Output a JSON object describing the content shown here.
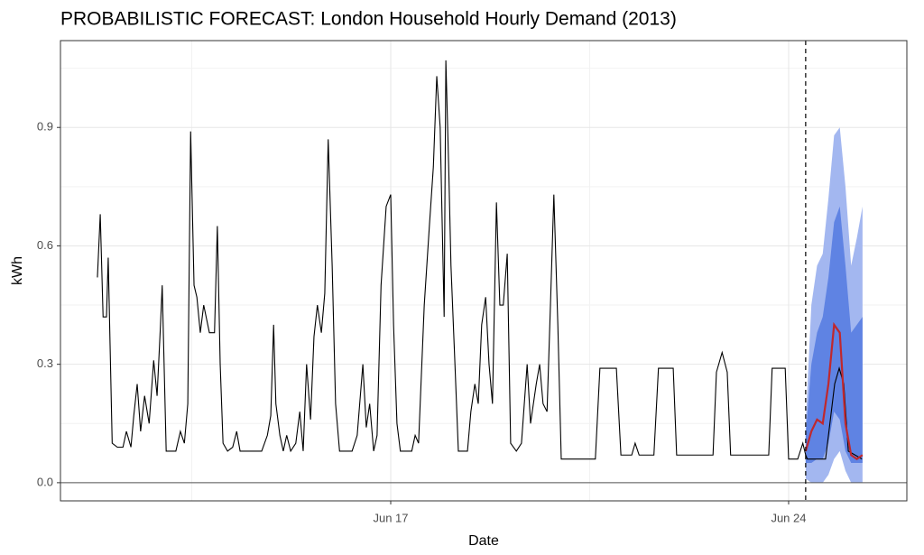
{
  "chart_data": {
    "type": "line",
    "title": "PROBABILISTIC FORECAST: London Household Hourly Demand (2013)",
    "xlabel": "Date",
    "ylabel": "kWh",
    "xlim": [
      11.19,
      26.08
    ],
    "ylim": [
      -0.046,
      1.12
    ],
    "xticks": [
      {
        "value": 17,
        "label": "Jun 17"
      },
      {
        "value": 24,
        "label": "Jun 24"
      }
    ],
    "yticks": [
      {
        "value": 0,
        "label": "0.0"
      },
      0.3,
      0.6,
      0.9
    ],
    "xminor": [
      13.5,
      20.5
    ],
    "yminor": [
      0.15,
      0.45,
      0.75,
      1.05
    ],
    "grid": true,
    "hline": 0,
    "forecast_start": 24.3,
    "series": [
      {
        "color": "#000000",
        "x": [
          11.84,
          11.89,
          11.94,
          12.0,
          12.03,
          12.1,
          12.19,
          12.29,
          12.35,
          12.43,
          12.48,
          12.54,
          12.6,
          12.67,
          12.75,
          12.83,
          12.89,
          12.95,
          12.98,
          13.05,
          13.22,
          13.3,
          13.37,
          13.43,
          13.48,
          13.54,
          13.59,
          13.65,
          13.71,
          13.81,
          13.9,
          13.95,
          14.0,
          14.05,
          14.13,
          14.22,
          14.29,
          14.35,
          14.44,
          14.73,
          14.83,
          14.89,
          14.94,
          14.98,
          15.05,
          15.11,
          15.17,
          15.24,
          15.33,
          15.4,
          15.46,
          15.52,
          15.59,
          15.65,
          15.71,
          15.78,
          15.84,
          15.9,
          15.97,
          16.03,
          16.1,
          16.32,
          16.41,
          16.51,
          16.57,
          16.63,
          16.7,
          16.76,
          16.83,
          16.92,
          17.0,
          17.05,
          17.11,
          17.17,
          17.37,
          17.43,
          17.49,
          17.59,
          17.68,
          17.75,
          17.81,
          17.87,
          17.94,
          17.97,
          18.02,
          18.06,
          18.13,
          18.19,
          18.35,
          18.41,
          18.48,
          18.54,
          18.6,
          18.67,
          18.73,
          18.79,
          18.86,
          18.92,
          18.98,
          19.05,
          19.11,
          19.21,
          19.3,
          19.4,
          19.46,
          19.56,
          19.62,
          19.68,
          19.75,
          19.81,
          19.87,
          19.94,
          20.0,
          20.29,
          20.6,
          20.68,
          20.97,
          21.05,
          21.24,
          21.3,
          21.37,
          21.63,
          21.71,
          21.97,
          22.03,
          22.67,
          22.73,
          22.83,
          22.92,
          22.98,
          23.65,
          23.71,
          23.94,
          24.0,
          24.16,
          24.25,
          24.3,
          24.33,
          24.65,
          24.81,
          24.89,
          24.97,
          25.05,
          25.29
        ],
        "values": [
          0.52,
          0.68,
          0.42,
          0.42,
          0.57,
          0.1,
          0.09,
          0.09,
          0.13,
          0.09,
          0.17,
          0.25,
          0.13,
          0.22,
          0.15,
          0.31,
          0.22,
          0.4,
          0.5,
          0.08,
          0.08,
          0.13,
          0.1,
          0.2,
          0.89,
          0.5,
          0.47,
          0.38,
          0.45,
          0.38,
          0.38,
          0.65,
          0.3,
          0.1,
          0.08,
          0.09,
          0.13,
          0.08,
          0.08,
          0.08,
          0.12,
          0.17,
          0.4,
          0.2,
          0.12,
          0.08,
          0.12,
          0.08,
          0.1,
          0.18,
          0.08,
          0.3,
          0.16,
          0.37,
          0.45,
          0.38,
          0.48,
          0.87,
          0.55,
          0.2,
          0.08,
          0.08,
          0.12,
          0.3,
          0.14,
          0.2,
          0.08,
          0.12,
          0.5,
          0.7,
          0.73,
          0.4,
          0.15,
          0.08,
          0.08,
          0.12,
          0.1,
          0.45,
          0.65,
          0.8,
          1.03,
          0.9,
          0.42,
          1.07,
          0.8,
          0.55,
          0.3,
          0.08,
          0.08,
          0.18,
          0.25,
          0.2,
          0.4,
          0.47,
          0.3,
          0.2,
          0.71,
          0.45,
          0.45,
          0.58,
          0.1,
          0.08,
          0.1,
          0.3,
          0.15,
          0.25,
          0.3,
          0.2,
          0.18,
          0.45,
          0.73,
          0.4,
          0.06,
          0.06,
          0.06,
          0.29,
          0.29,
          0.07,
          0.07,
          0.1,
          0.07,
          0.07,
          0.29,
          0.29,
          0.07,
          0.07,
          0.28,
          0.33,
          0.28,
          0.07,
          0.07,
          0.29,
          0.29,
          0.06,
          0.06,
          0.1,
          0.07,
          0.06,
          0.06,
          0.25,
          0.29,
          0.25,
          0.08,
          0.06
        ]
      }
    ],
    "forecast": {
      "x": [
        24.3,
        24.4,
        24.5,
        24.6,
        24.7,
        24.8,
        24.9,
        25.0,
        25.1,
        25.2,
        25.3
      ],
      "median": [
        0.08,
        0.13,
        0.16,
        0.15,
        0.25,
        0.4,
        0.38,
        0.15,
        0.07,
        0.06,
        0.07
      ],
      "color": "#c0282d",
      "bands": [
        {
          "color": "#a3b7f0",
          "lower": [
            0.01,
            0,
            0,
            0,
            0.02,
            0.06,
            0.08,
            0.03,
            0,
            0,
            0
          ],
          "upper": [
            0.15,
            0.45,
            0.55,
            0.58,
            0.72,
            0.88,
            0.9,
            0.75,
            0.55,
            0.62,
            0.7
          ]
        },
        {
          "color": "#5f83e3",
          "lower": [
            0.05,
            0.05,
            0.06,
            0.06,
            0.1,
            0.18,
            0.16,
            0.08,
            0.05,
            0.05,
            0.05
          ],
          "upper": [
            0.12,
            0.3,
            0.38,
            0.42,
            0.52,
            0.66,
            0.7,
            0.55,
            0.38,
            0.4,
            0.42
          ]
        }
      ]
    }
  }
}
